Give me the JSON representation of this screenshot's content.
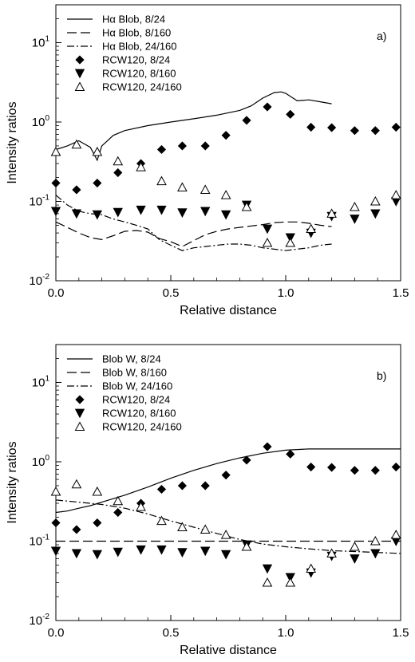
{
  "chart_data": [
    {
      "type": "scatter",
      "panel_label": "a)",
      "xlabel": "Relative distance",
      "ylabel": "Intensity ratios",
      "xlim": [
        0.0,
        1.5
      ],
      "ylim": [
        0.01,
        30
      ],
      "yscale": "log",
      "xticks": [
        "0.0",
        "0.5",
        "1.0",
        "1.5"
      ],
      "yticks": [
        {
          "base": "10",
          "exp": "-2"
        },
        {
          "base": "10",
          "exp": "-1"
        },
        {
          "base": "10",
          "exp": "0"
        },
        {
          "base": "10",
          "exp": "1"
        }
      ],
      "legend_position": "top-left",
      "series": [
        {
          "name": "Hα Blob, 8/24",
          "kind": "line",
          "dash": "solid",
          "x": [
            0.0,
            0.05,
            0.1,
            0.15,
            0.18,
            0.2,
            0.25,
            0.3,
            0.4,
            0.5,
            0.6,
            0.7,
            0.8,
            0.85,
            0.9,
            0.95,
            0.98,
            1.0,
            1.05,
            1.1,
            1.15,
            1.2
          ],
          "y": [
            0.45,
            0.5,
            0.58,
            0.48,
            0.33,
            0.5,
            0.68,
            0.78,
            0.9,
            1.0,
            1.1,
            1.22,
            1.4,
            1.6,
            2.0,
            2.35,
            2.4,
            2.3,
            1.85,
            1.9,
            1.8,
            1.7
          ]
        },
        {
          "name": "Hα Blob, 8/160",
          "kind": "line",
          "dash": "dashed",
          "x": [
            0.0,
            0.05,
            0.1,
            0.15,
            0.2,
            0.25,
            0.3,
            0.35,
            0.4,
            0.45,
            0.5,
            0.55,
            0.6,
            0.65,
            0.7,
            0.75,
            0.8,
            0.85,
            0.9,
            0.95,
            1.0,
            1.05,
            1.1,
            1.15,
            1.2
          ],
          "y": [
            0.055,
            0.047,
            0.04,
            0.035,
            0.033,
            0.037,
            0.042,
            0.043,
            0.041,
            0.034,
            0.031,
            0.027,
            0.032,
            0.038,
            0.042,
            0.045,
            0.047,
            0.049,
            0.051,
            0.054,
            0.055,
            0.055,
            0.053,
            0.05,
            0.048
          ]
        },
        {
          "name": "Hα Blob, 24/160",
          "kind": "line",
          "dash": "dashdot",
          "x": [
            0.0,
            0.05,
            0.1,
            0.15,
            0.2,
            0.25,
            0.3,
            0.35,
            0.4,
            0.45,
            0.5,
            0.55,
            0.6,
            0.65,
            0.7,
            0.75,
            0.8,
            0.85,
            0.9,
            0.95,
            1.0,
            1.05,
            1.1,
            1.15,
            1.2
          ],
          "y": [
            0.12,
            0.09,
            0.075,
            0.07,
            0.068,
            0.06,
            0.055,
            0.05,
            0.045,
            0.033,
            0.028,
            0.024,
            0.026,
            0.027,
            0.028,
            0.029,
            0.029,
            0.028,
            0.026,
            0.025,
            0.024,
            0.025,
            0.026,
            0.028,
            0.029
          ]
        },
        {
          "name": "RCW120, 8/24",
          "kind": "marker",
          "marker": "diamond",
          "x": [
            0.0,
            0.09,
            0.18,
            0.27,
            0.37,
            0.46,
            0.55,
            0.65,
            0.74,
            0.83,
            0.92,
            1.02,
            1.11,
            1.2,
            1.3,
            1.39,
            1.48
          ],
          "y": [
            0.17,
            0.14,
            0.17,
            0.23,
            0.3,
            0.45,
            0.5,
            0.5,
            0.68,
            1.05,
            1.55,
            1.25,
            0.86,
            0.85,
            0.78,
            0.78,
            0.86
          ]
        },
        {
          "name": "RCW120, 8/160",
          "kind": "marker",
          "marker": "triangle-down",
          "x": [
            0.0,
            0.09,
            0.18,
            0.27,
            0.37,
            0.46,
            0.55,
            0.65,
            0.74,
            0.83,
            0.92,
            1.02,
            1.11,
            1.2,
            1.3,
            1.39,
            1.48
          ],
          "y": [
            0.075,
            0.07,
            0.068,
            0.073,
            0.078,
            0.078,
            0.072,
            0.075,
            0.068,
            0.09,
            0.045,
            0.035,
            0.04,
            0.065,
            0.06,
            0.07,
            0.1
          ]
        },
        {
          "name": "RCW120, 24/160",
          "kind": "marker",
          "marker": "triangle-up-open",
          "x": [
            0.0,
            0.09,
            0.18,
            0.27,
            0.37,
            0.46,
            0.55,
            0.65,
            0.74,
            0.83,
            0.92,
            1.02,
            1.11,
            1.2,
            1.3,
            1.39,
            1.48
          ],
          "y": [
            0.42,
            0.52,
            0.42,
            0.32,
            0.27,
            0.18,
            0.15,
            0.14,
            0.12,
            0.085,
            0.03,
            0.03,
            0.045,
            0.07,
            0.085,
            0.1,
            0.12
          ]
        }
      ]
    },
    {
      "type": "scatter",
      "panel_label": "b)",
      "xlabel": "Relative distance",
      "ylabel": "Intensity ratios",
      "xlim": [
        0.0,
        1.5
      ],
      "ylim": [
        0.01,
        30
      ],
      "yscale": "log",
      "xticks": [
        "0.0",
        "0.5",
        "1.0",
        "1.5"
      ],
      "yticks": [
        {
          "base": "10",
          "exp": "-2"
        },
        {
          "base": "10",
          "exp": "-1"
        },
        {
          "base": "10",
          "exp": "0"
        },
        {
          "base": "10",
          "exp": "1"
        }
      ],
      "legend_position": "top-left",
      "series": [
        {
          "name": "Blob W, 8/24",
          "kind": "line",
          "dash": "solid",
          "x": [
            0.0,
            0.05,
            0.1,
            0.15,
            0.2,
            0.3,
            0.4,
            0.5,
            0.6,
            0.7,
            0.8,
            0.9,
            1.0,
            1.1,
            1.2,
            1.3,
            1.4,
            1.5
          ],
          "y": [
            0.23,
            0.24,
            0.26,
            0.28,
            0.31,
            0.38,
            0.48,
            0.62,
            0.78,
            0.95,
            1.12,
            1.28,
            1.4,
            1.45,
            1.45,
            1.45,
            1.45,
            1.45
          ]
        },
        {
          "name": "Blob W, 8/160",
          "kind": "line",
          "dash": "dashed",
          "x": [
            0.0,
            0.5,
            1.0,
            1.5
          ],
          "y": [
            0.1,
            0.1,
            0.1,
            0.1
          ]
        },
        {
          "name": "Blob W, 24/160",
          "kind": "line",
          "dash": "dashdot",
          "x": [
            0.0,
            0.1,
            0.2,
            0.3,
            0.4,
            0.5,
            0.6,
            0.7,
            0.8,
            0.9,
            1.0,
            1.1,
            1.2,
            1.3,
            1.4,
            1.5
          ],
          "y": [
            0.33,
            0.31,
            0.29,
            0.26,
            0.22,
            0.18,
            0.15,
            0.125,
            0.105,
            0.092,
            0.085,
            0.08,
            0.076,
            0.074,
            0.072,
            0.07
          ]
        },
        {
          "name": "RCW120, 8/24",
          "kind": "marker",
          "marker": "diamond",
          "x": [
            0.0,
            0.09,
            0.18,
            0.27,
            0.37,
            0.46,
            0.55,
            0.65,
            0.74,
            0.83,
            0.92,
            1.02,
            1.11,
            1.2,
            1.3,
            1.39,
            1.48
          ],
          "y": [
            0.17,
            0.14,
            0.17,
            0.23,
            0.3,
            0.45,
            0.5,
            0.5,
            0.68,
            1.05,
            1.55,
            1.25,
            0.86,
            0.85,
            0.78,
            0.78,
            0.86
          ]
        },
        {
          "name": "RCW120, 8/160",
          "kind": "marker",
          "marker": "triangle-down",
          "x": [
            0.0,
            0.09,
            0.18,
            0.27,
            0.37,
            0.46,
            0.55,
            0.65,
            0.74,
            0.83,
            0.92,
            1.02,
            1.11,
            1.2,
            1.3,
            1.39,
            1.48
          ],
          "y": [
            0.075,
            0.07,
            0.068,
            0.073,
            0.078,
            0.078,
            0.072,
            0.075,
            0.068,
            0.09,
            0.045,
            0.035,
            0.04,
            0.065,
            0.06,
            0.07,
            0.1
          ]
        },
        {
          "name": "RCW120, 24/160",
          "kind": "marker",
          "marker": "triangle-up-open",
          "x": [
            0.0,
            0.09,
            0.18,
            0.27,
            0.37,
            0.46,
            0.55,
            0.65,
            0.74,
            0.83,
            0.92,
            1.02,
            1.11,
            1.2,
            1.3,
            1.39,
            1.48
          ],
          "y": [
            0.42,
            0.52,
            0.42,
            0.32,
            0.27,
            0.18,
            0.15,
            0.14,
            0.12,
            0.085,
            0.03,
            0.03,
            0.045,
            0.07,
            0.085,
            0.1,
            0.12
          ]
        }
      ]
    }
  ]
}
